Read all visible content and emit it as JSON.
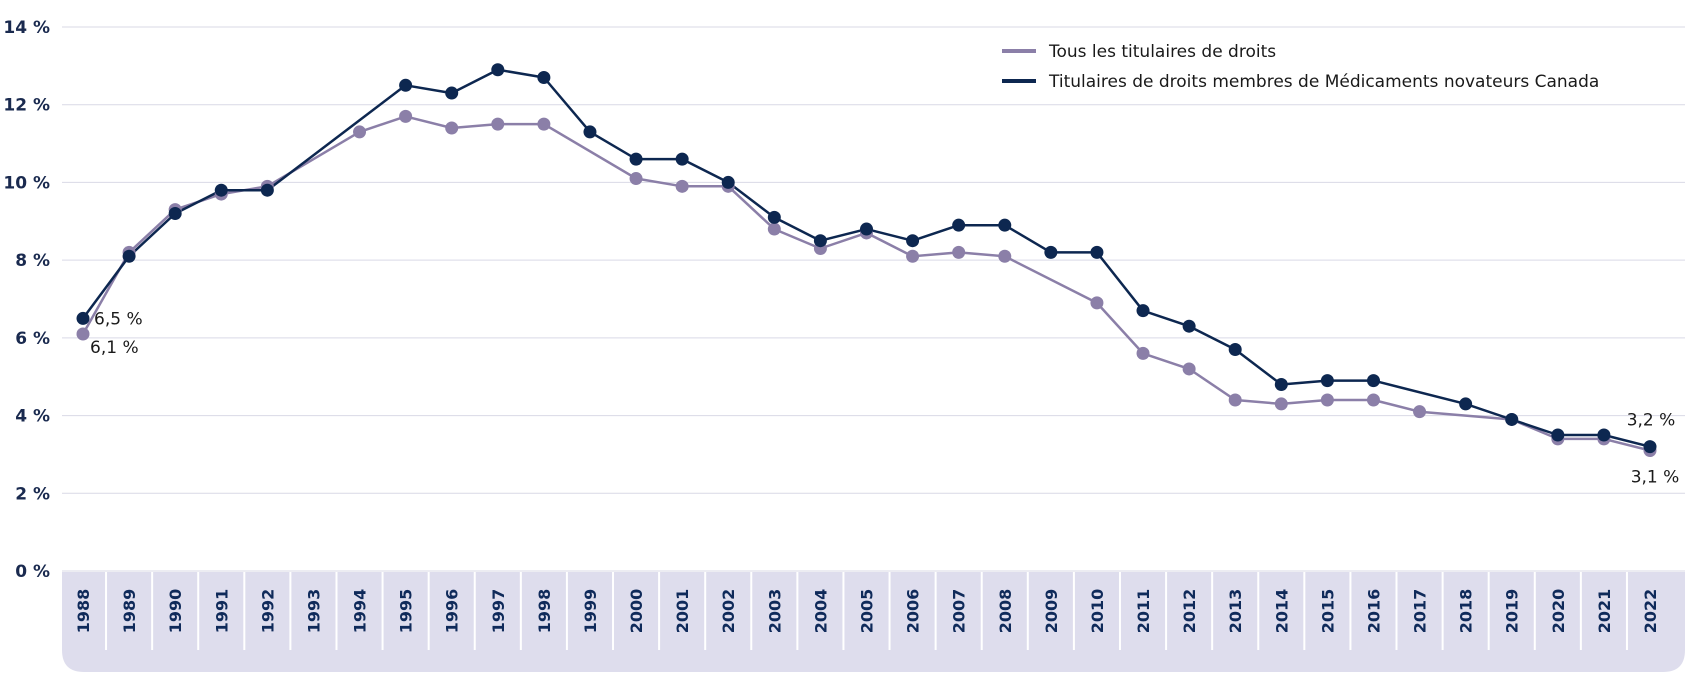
{
  "chart_data": {
    "type": "line",
    "title": "",
    "xlabel": "",
    "ylabel": "",
    "ylim": [
      0,
      14
    ],
    "yticks": [
      0,
      2,
      4,
      6,
      8,
      10,
      12,
      14
    ],
    "ytick_labels": [
      "0 %",
      "2 %",
      "4 %",
      "6 %",
      "8 %",
      "10 %",
      "12 %",
      "14 %"
    ],
    "grid": "horizontal",
    "legend_position": "top-right",
    "categories": [
      "1988",
      "1989",
      "1990",
      "1991",
      "1992",
      "1993",
      "1994",
      "1995",
      "1996",
      "1997",
      "1998",
      "1999",
      "2000",
      "2001",
      "2002",
      "2003",
      "2004",
      "2005",
      "2006",
      "2007",
      "2008",
      "2009",
      "2010",
      "2011",
      "2012",
      "2013",
      "2014",
      "2015",
      "2016",
      "2017",
      "2018",
      "2019",
      "2020",
      "2021",
      "2022"
    ],
    "series": [
      {
        "name": "Tous les titulaires de droits",
        "color": "#8b7fa8",
        "values": [
          6.1,
          8.2,
          9.3,
          9.7,
          9.9,
          null,
          11.3,
          11.7,
          11.4,
          11.5,
          11.5,
          null,
          10.1,
          9.9,
          9.9,
          8.8,
          8.3,
          8.7,
          8.1,
          8.2,
          8.1,
          null,
          6.9,
          5.6,
          5.2,
          4.4,
          4.3,
          4.4,
          4.4,
          4.1,
          null,
          3.9,
          3.4,
          3.4,
          3.1
        ]
      },
      {
        "name": "Titulaires de droits membres de Médicaments novateurs Canada",
        "color": "#0d2750",
        "values": [
          6.5,
          8.1,
          9.2,
          9.8,
          9.8,
          null,
          null,
          12.5,
          12.3,
          12.9,
          12.7,
          11.3,
          10.6,
          10.6,
          10.0,
          9.1,
          8.5,
          8.8,
          8.5,
          8.9,
          8.9,
          8.2,
          8.2,
          6.7,
          6.3,
          5.7,
          4.8,
          4.9,
          4.9,
          null,
          4.3,
          3.9,
          3.5,
          3.5,
          3.2
        ]
      }
    ],
    "annotations": [
      {
        "text": "6,5 %",
        "category": "1988",
        "series": 1
      },
      {
        "text": "6,1 %",
        "category": "1988",
        "series": 0
      },
      {
        "text": "3,2 %",
        "category": "2022",
        "series": 1
      },
      {
        "text": "3,1 %",
        "category": "2022",
        "series": 0
      }
    ]
  }
}
